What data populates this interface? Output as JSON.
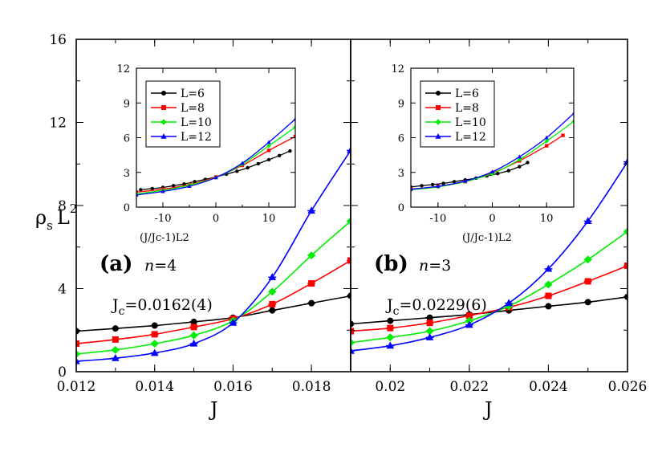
{
  "figure": {
    "ylabel_main": "ρ",
    "ylabel_sub": "s",
    "ylabel_tail": "L",
    "ylabel_sup": "2",
    "xlabel": "J"
  },
  "colors": {
    "L6": "#000000",
    "L8": "#ff0000",
    "L10": "#00ee00",
    "L12": "#0000ff",
    "background": "#ffffff"
  },
  "chart_data": [
    {
      "type": "line",
      "panel": "(a)",
      "annotation_n_italic": "n",
      "annotation_n_value": "=4",
      "annotation_jc_main": "J",
      "annotation_jc_sub": "c",
      "annotation_jc_value": "=0.0162(4)",
      "xlabel": "J",
      "ylabel": "ρs L2",
      "xlim": [
        0.012,
        0.019
      ],
      "ylim": [
        0,
        16
      ],
      "xticks": [
        "0.012",
        "0.014",
        "0.016",
        "0.018"
      ],
      "yticks": [
        "0",
        "4",
        "8",
        "12",
        "16"
      ],
      "series": [
        {
          "name": "L=6",
          "x": [
            0.012,
            0.013,
            0.014,
            0.015,
            0.016,
            0.017,
            0.018,
            0.019
          ],
          "y": [
            1.95,
            2.08,
            2.22,
            2.4,
            2.6,
            2.95,
            3.3,
            3.65
          ]
        },
        {
          "name": "L=8",
          "x": [
            0.012,
            0.013,
            0.014,
            0.015,
            0.016,
            0.017,
            0.018,
            0.019
          ],
          "y": [
            1.35,
            1.55,
            1.8,
            2.15,
            2.55,
            3.25,
            4.25,
            5.35
          ]
        },
        {
          "name": "L=10",
          "x": [
            0.012,
            0.013,
            0.014,
            0.015,
            0.016,
            0.017,
            0.018,
            0.019
          ],
          "y": [
            0.85,
            1.05,
            1.35,
            1.75,
            2.45,
            3.85,
            5.6,
            7.25
          ]
        },
        {
          "name": "L=12",
          "x": [
            0.012,
            0.013,
            0.014,
            0.015,
            0.016,
            0.017,
            0.018,
            0.019
          ],
          "y": [
            0.5,
            0.65,
            0.9,
            1.35,
            2.35,
            4.55,
            7.75,
            10.65
          ]
        }
      ],
      "inset": {
        "xlabel": "(J/Jc-1)L2",
        "xlim": [
          -15,
          15
        ],
        "ylim": [
          0,
          12
        ],
        "xticks": [
          "-10",
          "0",
          "10"
        ],
        "yticks": [
          "0",
          "3",
          "6",
          "9",
          "12"
        ],
        "legend": [
          "L=6",
          "L=8",
          "L=10",
          "L=12"
        ],
        "series": [
          {
            "name": "L=6",
            "x": [
              -14.2,
              -12,
              -10,
              -8,
              -6,
              -4,
              -2,
              0,
              2,
              4,
              6,
              8,
              10,
              12,
              14
            ],
            "y": [
              1.5,
              1.6,
              1.7,
              1.85,
              2.0,
              2.2,
              2.4,
              2.6,
              2.85,
              3.1,
              3.4,
              3.75,
              4.1,
              4.45,
              4.85
            ]
          },
          {
            "name": "L=8",
            "x": [
              -15,
              -10,
              -5,
              0,
              5,
              10,
              15
            ],
            "y": [
              1.3,
              1.55,
              1.95,
              2.6,
              3.6,
              4.9,
              6.1
            ]
          },
          {
            "name": "L=10",
            "x": [
              -15,
              -10,
              -5,
              0,
              5,
              10,
              15
            ],
            "y": [
              1.15,
              1.45,
              1.9,
              2.55,
              3.7,
              5.3,
              6.9
            ]
          },
          {
            "name": "L=12",
            "x": [
              -15,
              -10,
              -5,
              0,
              5,
              10,
              15
            ],
            "y": [
              1.05,
              1.35,
              1.8,
              2.55,
              3.8,
              5.6,
              7.6
            ]
          }
        ]
      }
    },
    {
      "type": "line",
      "panel": "(b)",
      "annotation_n_italic": "n",
      "annotation_n_value": "=3",
      "annotation_jc_main": "J",
      "annotation_jc_sub": "c",
      "annotation_jc_value": "=0.0229(6)",
      "xlabel": "J",
      "xlim": [
        0.019,
        0.026
      ],
      "ylim": [
        0,
        16
      ],
      "xticks": [
        "0.02",
        "0.022",
        "0.024",
        "0.026"
      ],
      "series": [
        {
          "name": "L=6",
          "x": [
            0.019,
            0.02,
            0.021,
            0.022,
            0.023,
            0.024,
            0.025,
            0.026
          ],
          "y": [
            2.3,
            2.45,
            2.6,
            2.75,
            2.95,
            3.15,
            3.35,
            3.6
          ]
        },
        {
          "name": "L=8",
          "x": [
            0.019,
            0.02,
            0.021,
            0.022,
            0.023,
            0.024,
            0.025,
            0.026
          ],
          "y": [
            1.95,
            2.1,
            2.35,
            2.7,
            3.1,
            3.65,
            4.35,
            5.1
          ]
        },
        {
          "name": "L=10",
          "x": [
            0.019,
            0.02,
            0.021,
            0.022,
            0.023,
            0.024,
            0.025,
            0.026
          ],
          "y": [
            1.4,
            1.65,
            1.95,
            2.45,
            3.15,
            4.2,
            5.4,
            6.75
          ]
        },
        {
          "name": "L=12",
          "x": [
            0.019,
            0.02,
            0.021,
            0.022,
            0.023,
            0.024,
            0.025,
            0.026
          ],
          "y": [
            1.0,
            1.25,
            1.65,
            2.25,
            3.3,
            4.95,
            7.25,
            10.1
          ]
        }
      ],
      "inset": {
        "xlabel": "(J/Jc-1)L2",
        "xlim": [
          -15,
          15
        ],
        "ylim": [
          0,
          12
        ],
        "xticks": [
          "-10",
          "0",
          "10"
        ],
        "yticks": [
          "0",
          "3",
          "6",
          "9",
          "12"
        ],
        "legend": [
          "L=6",
          "L=8",
          "L=10",
          "L=12"
        ],
        "series": [
          {
            "name": "L=6",
            "x": [
              -15,
              -13,
              -11,
              -9,
              -7,
              -5,
              -3,
              -1,
              1,
              3,
              5,
              6.5
            ],
            "y": [
              1.75,
              1.85,
              1.95,
              2.05,
              2.2,
              2.35,
              2.5,
              2.7,
              2.9,
              3.15,
              3.5,
              3.85
            ]
          },
          {
            "name": "L=8",
            "x": [
              -15,
              -10,
              -5,
              0,
              5,
              10,
              13
            ],
            "y": [
              1.55,
              1.8,
              2.2,
              2.95,
              4.0,
              5.3,
              6.2
            ]
          },
          {
            "name": "L=10",
            "x": [
              -15,
              -10,
              -5,
              0,
              5,
              10,
              15
            ],
            "y": [
              1.5,
              1.75,
              2.2,
              2.9,
              4.1,
              5.7,
              7.4
            ]
          },
          {
            "name": "L=12",
            "x": [
              -15,
              -10,
              -5,
              0,
              5,
              10,
              15
            ],
            "y": [
              1.55,
              1.8,
              2.25,
              3.05,
              4.35,
              6.0,
              8.1
            ]
          }
        ]
      }
    }
  ]
}
